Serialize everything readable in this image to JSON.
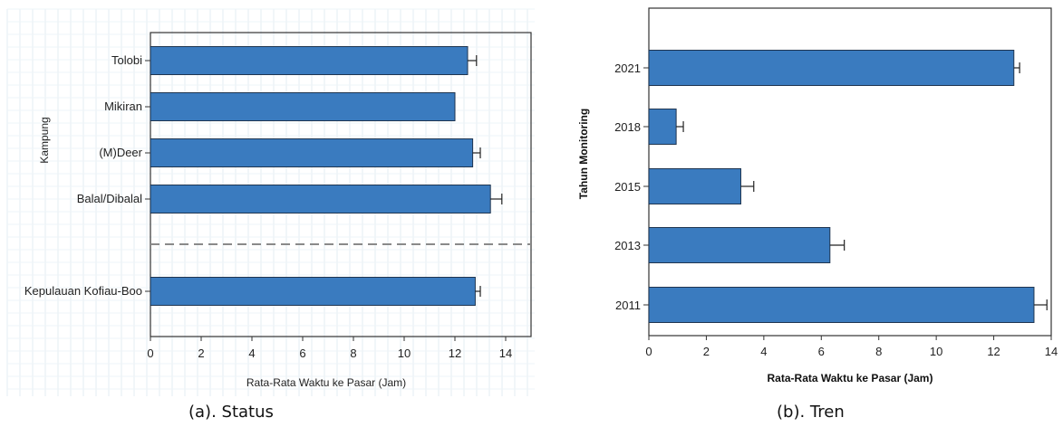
{
  "colors": {
    "bar_fill": "#3a7bbf",
    "bar_stroke": "#1f3550",
    "grid_a": "#e3ecf3",
    "grid_b": "#eef4f8",
    "divider": "#8a8a8a",
    "frame": "#333333"
  },
  "chart_data": [
    {
      "type": "bar",
      "orientation": "horizontal",
      "caption": "(a). Status",
      "xlabel": "Rata-Rata Waktu ke Pasar (Jam)",
      "ylabel": "Kampung",
      "xlim": [
        0,
        15
      ],
      "xticks": [
        0,
        2,
        4,
        6,
        8,
        10,
        12,
        14
      ],
      "grid": true,
      "categories": [
        "Tolobi",
        "Mikiran",
        "(M)Deer",
        "Balal/Dibalal",
        "Kepulauan Kofiau-Boo"
      ],
      "values": [
        12.5,
        12.0,
        12.7,
        13.4,
        12.8
      ],
      "errors": [
        0.35,
        0.0,
        0.3,
        0.45,
        0.2
      ],
      "separator_after": "Balal/Dibalal"
    },
    {
      "type": "bar",
      "orientation": "horizontal",
      "caption": "(b). Tren",
      "xlabel": "Rata-Rata Waktu ke Pasar (Jam)",
      "ylabel": "Tahun Monitoring",
      "xlim": [
        0,
        14
      ],
      "xticks": [
        0,
        2,
        4,
        6,
        8,
        10,
        12,
        14
      ],
      "grid": false,
      "categories": [
        "2021",
        "2018",
        "2015",
        "2013",
        "2011"
      ],
      "values": [
        12.7,
        0.95,
        3.2,
        6.3,
        13.4
      ],
      "errors": [
        0.2,
        0.25,
        0.45,
        0.5,
        0.45
      ]
    }
  ]
}
